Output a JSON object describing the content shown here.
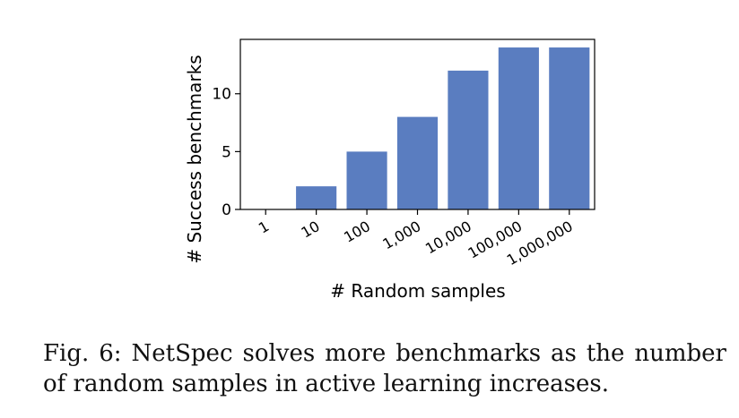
{
  "chart_data": {
    "type": "bar",
    "title": "",
    "xlabel": "# Random samples",
    "ylabel": "# Success benchmarks",
    "categories": [
      "1",
      "10",
      "100",
      "1,000",
      "10,000",
      "100,000",
      "1,000,000"
    ],
    "values": [
      0,
      2,
      5,
      8,
      12,
      14,
      14
    ],
    "ylim": [
      0,
      14.7
    ],
    "yticks": [
      0,
      5,
      10
    ],
    "grid": false,
    "bar_color": "#5a7dc0",
    "x_tick_rotation_deg": -30
  },
  "caption": "Fig. 6: NetSpec solves more benchmarks as the number of random samples in active learning increases."
}
